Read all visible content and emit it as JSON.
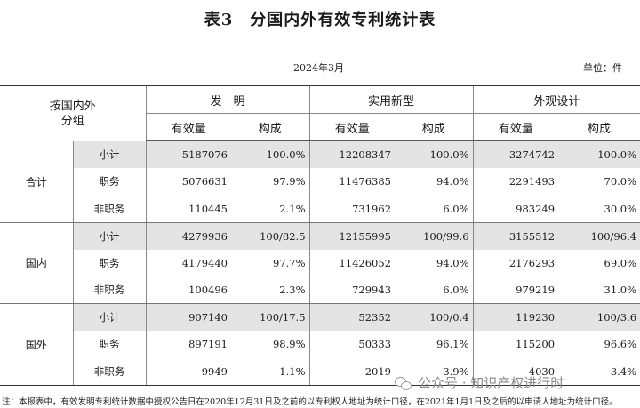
{
  "title": "表3　分国内外有效专利统计表",
  "date": "2024年3月",
  "unit": "单位：件",
  "header": {
    "group_col": "按国内外分组",
    "categories": [
      "发　明",
      "实用新型",
      "外观设计"
    ],
    "subheaders": [
      "有效量",
      "构成",
      "有效量",
      "构成",
      "有效量",
      "构成"
    ]
  },
  "rows": [
    {
      "group": "合计",
      "sub": "小计",
      "cells": [
        "5187076",
        "100.0%",
        "12208347",
        "100.0%",
        "3274742",
        "100.0%"
      ]
    },
    {
      "group": "",
      "sub": "职务",
      "cells": [
        "5076631",
        "97.9%",
        "11476385",
        "94.0%",
        "2291493",
        "70.0%"
      ]
    },
    {
      "group": "",
      "sub": "非职务",
      "cells": [
        "110445",
        "2.1%",
        "731962",
        "6.0%",
        "983249",
        "30.0%"
      ]
    },
    {
      "group": "国内",
      "sub": "小计",
      "cells": [
        "4279936",
        "100/82.5",
        "12155995",
        "100/99.6",
        "3155512",
        "100/96.4"
      ]
    },
    {
      "group": "",
      "sub": "职务",
      "cells": [
        "4179440",
        "97.7%",
        "11426052",
        "94.0%",
        "2176293",
        "69.0%"
      ]
    },
    {
      "group": "",
      "sub": "非职务",
      "cells": [
        "100496",
        "2.3%",
        "729943",
        "6.0%",
        "979219",
        "31.0%"
      ]
    },
    {
      "group": "国外",
      "sub": "小计",
      "cells": [
        "907140",
        "100/17.5",
        "52352",
        "100/0.4",
        "119230",
        "100/3.6"
      ]
    },
    {
      "group": "",
      "sub": "职务",
      "cells": [
        "897191",
        "98.9%",
        "50333",
        "96.1%",
        "115200",
        "96.6%"
      ]
    },
    {
      "group": "",
      "sub": "非职务",
      "cells": [
        "9949",
        "1.1%",
        "2019",
        "3.9%",
        "4030",
        "3.4%"
      ]
    }
  ],
  "note": "注：本报表中，有效发明专利统计数据中授权公告日在2020年12月31日及之前的以专利权人地址为统计口径，在2021年1月1日及之后的以申请人地址为统计口径。",
  "watermark": "公众号 · 知识产权进行时"
}
